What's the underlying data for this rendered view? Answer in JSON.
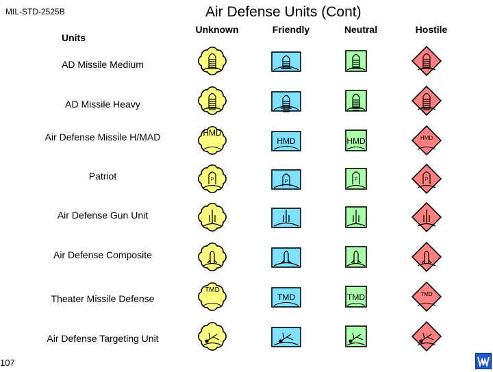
{
  "header": {
    "standard": "MIL-STD-2525B",
    "title": "Air Defense Units (Cont)"
  },
  "columns": {
    "units": "Units",
    "unknown": "Unknown",
    "friendly": "Friendly",
    "neutral": "Neutral",
    "hostile": "Hostile"
  },
  "rows": [
    {
      "label": "AD Missile Medium",
      "glyph": "missile-medium",
      "text": ""
    },
    {
      "label": "AD Missile Heavy",
      "glyph": "missile-heavy",
      "text": ""
    },
    {
      "label": "Air Defense Missile H/MAD",
      "glyph": "text",
      "text": "HMD"
    },
    {
      "label": "Patriot",
      "glyph": "patriot",
      "text": "P"
    },
    {
      "label": "Air Defense Gun Unit",
      "glyph": "gun",
      "text": ""
    },
    {
      "label": "Air Defense Composite",
      "glyph": "composite",
      "text": ""
    },
    {
      "label": "Theater Missile Defense",
      "glyph": "text",
      "text": "TMD"
    },
    {
      "label": "Air Defense Targeting Unit",
      "glyph": "targeting",
      "text": ""
    }
  ],
  "frame_colors": {
    "unknown": "#ffff80",
    "friendly": "#80e0ff",
    "neutral": "#aaffaa",
    "hostile": "#ff8080"
  },
  "footer": {
    "page_number": "107"
  }
}
